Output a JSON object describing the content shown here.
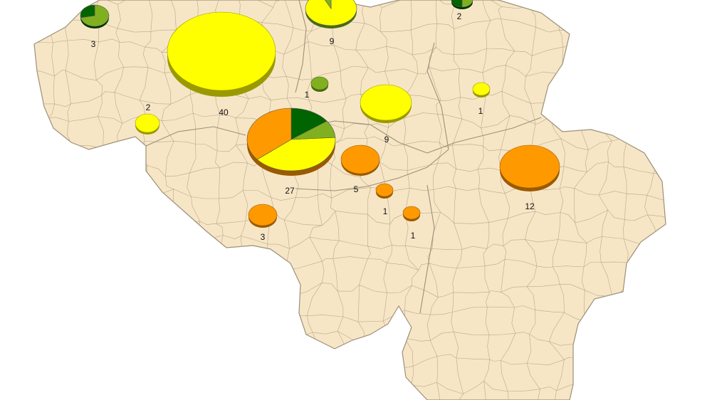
{
  "colors": {
    "land": "#f7e6c6",
    "border": "#b8a88a",
    "border_major": "#9d8f78",
    "yellow": "#ffff00",
    "yellow_edge": "#9a9a00",
    "orange": "#ff9900",
    "orange_edge": "#9a5a00",
    "green_light": "#80b020",
    "green_light_edge": "#4a6a10",
    "green_dark": "#006400",
    "green_dark_edge": "#003300"
  },
  "markers": [
    {
      "id": "m01",
      "label": "3",
      "slices": [
        {
          "color": "green_light",
          "value": 0.72
        },
        {
          "color": "green_dark",
          "value": 0.28
        }
      ]
    },
    {
      "id": "m02",
      "label": "40",
      "slices": [
        {
          "color": "yellow",
          "value": 1.0
        }
      ]
    },
    {
      "id": "m03",
      "label": "9",
      "slices": [
        {
          "color": "yellow",
          "value": 0.93
        },
        {
          "color": "green_light",
          "value": 0.07
        }
      ]
    },
    {
      "id": "m04",
      "label": "2",
      "slices": [
        {
          "color": "green_light",
          "value": 0.5
        },
        {
          "color": "green_dark",
          "value": 0.5
        }
      ]
    },
    {
      "id": "m05",
      "label": "1",
      "slices": [
        {
          "color": "green_light",
          "value": 1.0
        }
      ]
    },
    {
      "id": "m06",
      "label": "9",
      "slices": [
        {
          "color": "yellow",
          "value": 1.0
        }
      ]
    },
    {
      "id": "m07",
      "label": "1",
      "slices": [
        {
          "color": "yellow",
          "value": 1.0
        }
      ]
    },
    {
      "id": "m08",
      "label": "2",
      "slices": [
        {
          "color": "yellow",
          "value": 1.0
        }
      ]
    },
    {
      "id": "m09",
      "label": "27",
      "slices": [
        {
          "color": "green_dark",
          "value": 0.15
        },
        {
          "color": "green_light",
          "value": 0.09
        },
        {
          "color": "yellow",
          "value": 0.4
        },
        {
          "color": "orange",
          "value": 0.36
        }
      ]
    },
    {
      "id": "m10",
      "label": "5",
      "slices": [
        {
          "color": "orange",
          "value": 1.0
        }
      ]
    },
    {
      "id": "m11",
      "label": "12",
      "slices": [
        {
          "color": "orange",
          "value": 1.0
        }
      ]
    },
    {
      "id": "m12",
      "label": "1",
      "slices": [
        {
          "color": "orange",
          "value": 1.0
        }
      ]
    },
    {
      "id": "m13",
      "label": "1",
      "slices": [
        {
          "color": "orange",
          "value": 1.0
        }
      ]
    },
    {
      "id": "m14",
      "label": "3",
      "slices": [
        {
          "color": "orange",
          "value": 1.0
        }
      ]
    }
  ]
}
